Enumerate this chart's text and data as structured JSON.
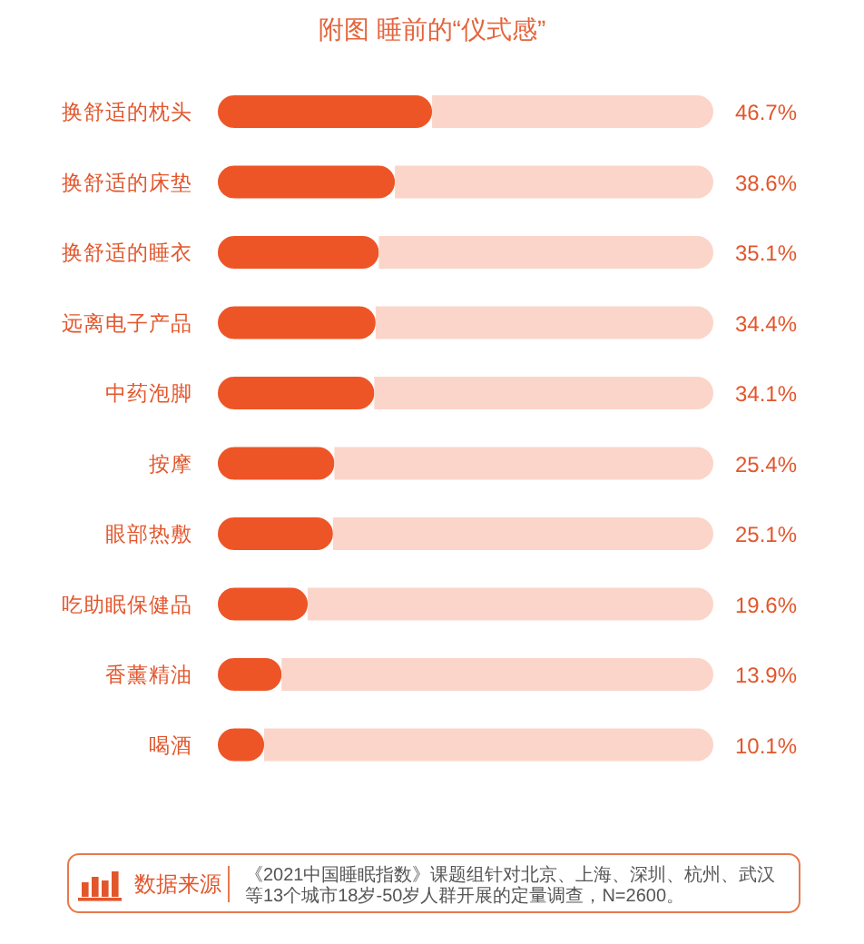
{
  "chart_data": {
    "type": "bar",
    "orientation": "horizontal",
    "stacked": true,
    "title": "附图 睡前的“仪式感”",
    "categories": [
      "换舒适的枕头",
      "换舒适的床垫",
      "换舒适的睡衣",
      "远离电子产品",
      "中药泡脚",
      "按摩",
      "眼部热敷",
      "吃助眠保健品",
      "香薰精油",
      "喝酒"
    ],
    "series": [
      {
        "color": "#ee5526",
        "values": [
          46.7,
          38.6,
          35.1,
          34.4,
          34.1,
          25.4,
          25.1,
          19.6,
          13.9,
          10.1
        ],
        "value_labels": [
          "46.7%",
          "38.6%",
          "35.1%",
          "34.4%",
          "34.1%",
          "25.4%",
          "25.1%",
          "19.6%",
          "13.9%",
          "10.1%"
        ]
      },
      {
        "color": "#fbd5c9",
        "values": [
          61.3,
          69.4,
          72.9,
          73.6,
          73.9,
          82.6,
          82.9,
          88.4,
          94.1,
          97.9
        ]
      }
    ],
    "xlim": [
      0,
      108
    ],
    "annotations": [
      "数据来源",
      "《2021中国睡眠指数》课题组针对北京、上海、深圳、杭州、武汉等13个城市18岁-50岁人群开展的定量调查，N=2600。"
    ]
  }
}
